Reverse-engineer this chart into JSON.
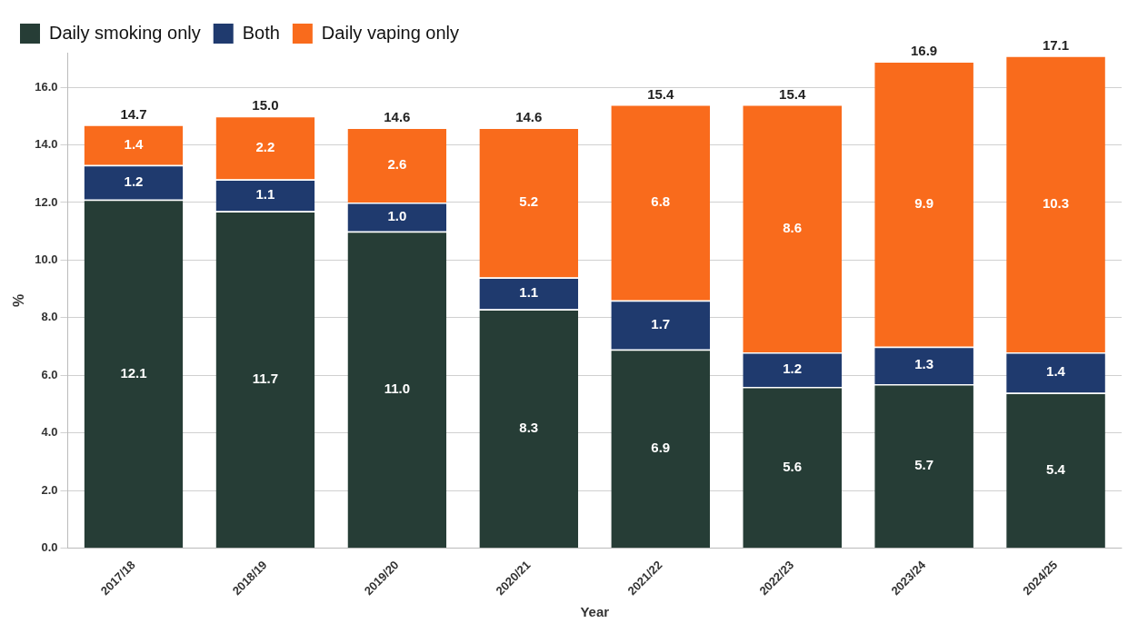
{
  "chart_data": {
    "type": "bar",
    "stacked": true,
    "xlabel": "Year",
    "ylabel": "%",
    "categories": [
      "2017/18",
      "2018/19",
      "2019/20",
      "2020/21",
      "2021/22",
      "2022/23",
      "2023/24",
      "2024/25"
    ],
    "series": [
      {
        "name": "Daily smoking only",
        "color": "#263d36",
        "values": [
          12.1,
          11.7,
          11.0,
          8.3,
          6.9,
          5.6,
          5.7,
          5.4
        ],
        "value_labels": [
          "12.1",
          "11.7",
          "11.0",
          "8.3",
          "6.9",
          "5.6",
          "5.7",
          "5.4"
        ]
      },
      {
        "name": "Both",
        "color": "#1f3a6e",
        "values": [
          1.2,
          1.1,
          1.0,
          1.1,
          1.7,
          1.2,
          1.3,
          1.4
        ],
        "value_labels": [
          "1.2",
          "1.1",
          "1.0",
          "1.1",
          "1.7",
          "1.2",
          "1.3",
          "1.4"
        ]
      },
      {
        "name": "Daily vaping only",
        "color": "#f96b1c",
        "values": [
          1.4,
          2.2,
          2.6,
          5.2,
          6.8,
          8.6,
          9.9,
          10.3
        ],
        "value_labels": [
          "1.4",
          "2.2",
          "2.6",
          "5.2",
          "6.8",
          "8.6",
          "9.9",
          "10.3"
        ]
      }
    ],
    "totals": [
      "14.7",
      "15.0",
      "14.6",
      "14.6",
      "15.4",
      "15.4",
      "16.9",
      "17.1"
    ],
    "ylim": [
      0,
      17.2
    ],
    "yticks": [
      {
        "value": 0,
        "label": "0.0"
      },
      {
        "value": 2,
        "label": "2.0"
      },
      {
        "value": 4,
        "label": "4.0"
      },
      {
        "value": 6,
        "label": "6.0"
      },
      {
        "value": 8,
        "label": "8.0"
      },
      {
        "value": 10,
        "label": "10.0"
      },
      {
        "value": 12,
        "label": "12.0"
      },
      {
        "value": 14,
        "label": "14.0"
      },
      {
        "value": 16,
        "label": "16.0"
      }
    ],
    "grid": "y",
    "legend": "top left"
  }
}
